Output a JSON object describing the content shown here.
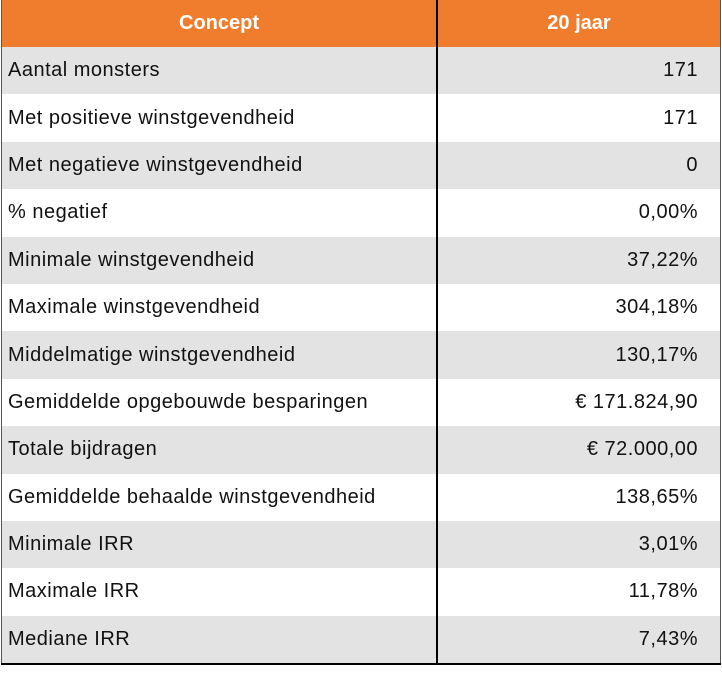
{
  "header": {
    "columns": [
      "Concept",
      "20 jaar"
    ]
  },
  "table": {
    "rows": [
      [
        "Aantal monsters",
        "171"
      ],
      [
        "Met positieve winstgevendheid",
        "171"
      ],
      [
        "Met negatieve winstgevendheid",
        "0"
      ],
      [
        "% negatief",
        "0,00%"
      ],
      [
        "Minimale winstgevendheid",
        "37,22%"
      ],
      [
        "Maximale winstgevendheid",
        "304,18%"
      ],
      [
        "Middelmatige winstgevendheid",
        "130,17%"
      ],
      [
        "Gemiddelde opgebouwde besparingen",
        "€ 171.824,90"
      ],
      [
        "Totale bijdragen",
        "€ 72.000,00"
      ],
      [
        "Gemiddelde behaalde winstgevendheid",
        "138,65%"
      ],
      [
        "Minimale IRR",
        "3,01%"
      ],
      [
        "Maximale IRR",
        "11,78%"
      ],
      [
        "Mediane IRR",
        "7,43%"
      ]
    ]
  }
}
